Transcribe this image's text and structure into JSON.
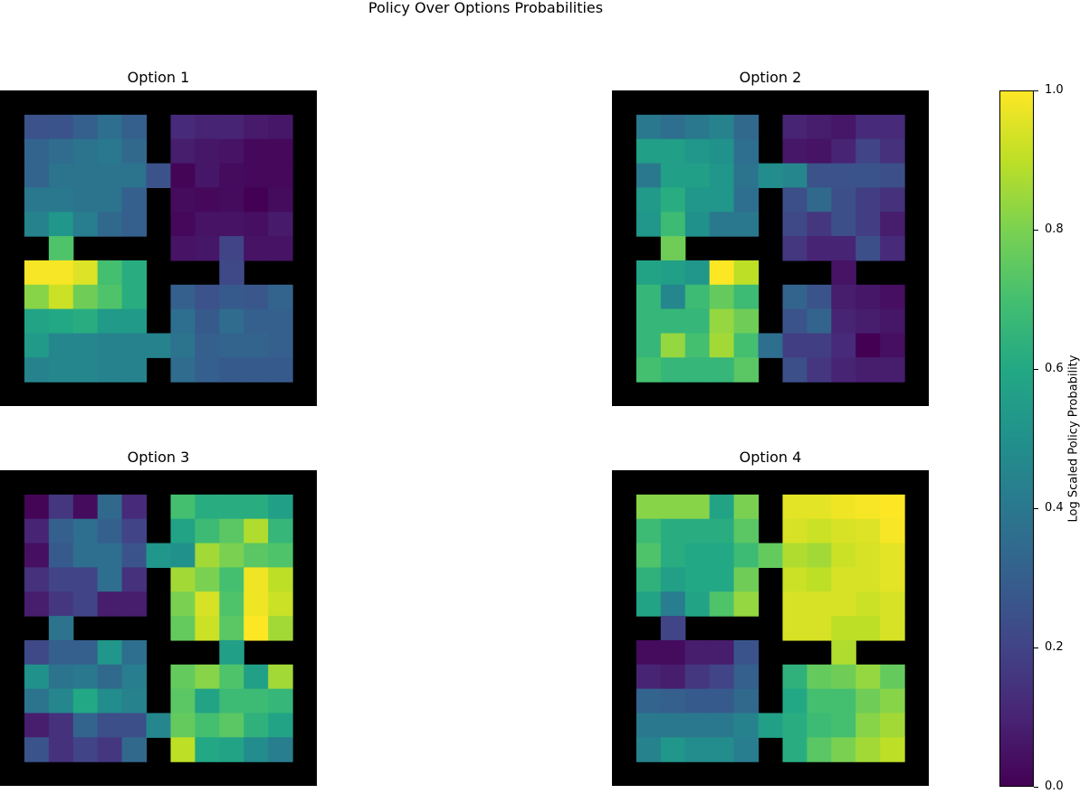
{
  "title": "Policy Over Options Probabilities",
  "colorbar": {
    "label": "Log Scaled Policy Probability",
    "ticks": [
      "0.0",
      "0.2",
      "0.4",
      "0.6",
      "0.8",
      "1.0"
    ],
    "tick_values": [
      0.0,
      0.2,
      0.4,
      0.6,
      0.8,
      1.0
    ],
    "colormap": "viridis"
  },
  "chart_data": [
    {
      "type": "heatmap",
      "title": "Option 1",
      "grid_size": 13,
      "wall_value": null,
      "values": [
        [
          null,
          null,
          null,
          null,
          null,
          null,
          null,
          null,
          null,
          null,
          null,
          null,
          null
        ],
        [
          null,
          0.25,
          0.26,
          0.3,
          0.36,
          0.3,
          null,
          0.12,
          0.1,
          0.1,
          0.07,
          0.06,
          null
        ],
        [
          null,
          0.32,
          0.35,
          0.38,
          0.4,
          0.34,
          null,
          0.08,
          0.06,
          0.05,
          0.02,
          0.02,
          null
        ],
        [
          null,
          0.32,
          0.38,
          0.38,
          0.38,
          0.38,
          0.25,
          0.01,
          0.06,
          0.03,
          0.02,
          0.02,
          null
        ],
        [
          null,
          0.4,
          0.4,
          0.38,
          0.38,
          0.3,
          null,
          0.03,
          0.02,
          0.03,
          0.0,
          0.03,
          null
        ],
        [
          null,
          0.44,
          0.52,
          0.42,
          0.34,
          0.3,
          null,
          0.02,
          0.05,
          0.05,
          0.04,
          0.07,
          null
        ],
        [
          null,
          null,
          0.72,
          null,
          null,
          null,
          null,
          0.05,
          0.06,
          0.2,
          0.05,
          0.05,
          null
        ],
        [
          null,
          0.99,
          0.99,
          0.95,
          0.7,
          0.62,
          null,
          null,
          null,
          0.22,
          null,
          null,
          null
        ],
        [
          null,
          0.82,
          0.92,
          0.78,
          0.72,
          0.62,
          null,
          0.3,
          0.25,
          0.28,
          0.27,
          0.32,
          null
        ],
        [
          null,
          0.58,
          0.6,
          0.62,
          0.54,
          0.54,
          null,
          0.36,
          0.28,
          0.35,
          0.3,
          0.3,
          null
        ],
        [
          null,
          0.54,
          0.46,
          0.46,
          0.44,
          0.44,
          0.44,
          0.38,
          0.3,
          0.32,
          0.32,
          0.3,
          null
        ],
        [
          null,
          0.44,
          0.46,
          0.46,
          0.44,
          0.44,
          null,
          0.35,
          0.3,
          0.28,
          0.28,
          0.28,
          null
        ],
        [
          null,
          null,
          null,
          null,
          null,
          null,
          null,
          null,
          null,
          null,
          null,
          null,
          null
        ]
      ]
    },
    {
      "type": "heatmap",
      "title": "Option 2",
      "grid_size": 13,
      "wall_value": null,
      "values": [
        [
          null,
          null,
          null,
          null,
          null,
          null,
          null,
          null,
          null,
          null,
          null,
          null,
          null
        ],
        [
          null,
          0.4,
          0.36,
          0.4,
          0.44,
          0.34,
          null,
          0.1,
          0.08,
          0.06,
          0.12,
          0.12,
          null
        ],
        [
          null,
          0.56,
          0.56,
          0.52,
          0.5,
          0.36,
          null,
          0.06,
          0.05,
          0.1,
          0.2,
          0.14,
          null
        ],
        [
          null,
          0.4,
          0.56,
          0.56,
          0.52,
          0.38,
          0.48,
          0.46,
          0.25,
          0.25,
          0.26,
          0.24,
          null
        ],
        [
          null,
          0.54,
          0.62,
          0.52,
          0.52,
          0.36,
          null,
          0.24,
          0.34,
          0.24,
          0.18,
          0.14,
          null
        ],
        [
          null,
          0.52,
          0.68,
          0.5,
          0.4,
          0.4,
          null,
          0.22,
          0.16,
          0.24,
          0.18,
          0.08,
          null
        ],
        [
          null,
          null,
          0.78,
          null,
          null,
          null,
          null,
          0.16,
          0.1,
          0.1,
          0.24,
          0.12,
          null
        ],
        [
          null,
          0.58,
          0.56,
          0.52,
          1.0,
          0.9,
          null,
          null,
          null,
          0.05,
          null,
          null,
          null
        ],
        [
          null,
          0.66,
          0.46,
          0.68,
          0.76,
          0.68,
          null,
          0.32,
          0.26,
          0.08,
          0.06,
          0.04,
          null
        ],
        [
          null,
          0.66,
          0.66,
          0.66,
          0.84,
          0.78,
          null,
          0.26,
          0.32,
          0.1,
          0.08,
          0.06,
          null
        ],
        [
          null,
          0.66,
          0.84,
          0.7,
          0.86,
          0.7,
          0.36,
          0.18,
          0.18,
          0.12,
          0.0,
          0.04,
          null
        ],
        [
          null,
          0.7,
          0.66,
          0.66,
          0.66,
          0.74,
          null,
          0.24,
          0.16,
          0.1,
          0.08,
          0.08,
          null
        ],
        [
          null,
          null,
          null,
          null,
          null,
          null,
          null,
          null,
          null,
          null,
          null,
          null,
          null
        ]
      ]
    },
    {
      "type": "heatmap",
      "title": "Option 3",
      "grid_size": 13,
      "wall_value": null,
      "values": [
        [
          null,
          null,
          null,
          null,
          null,
          null,
          null,
          null,
          null,
          null,
          null,
          null,
          null
        ],
        [
          null,
          0.01,
          0.16,
          0.03,
          0.34,
          0.12,
          null,
          0.7,
          0.62,
          0.62,
          0.62,
          0.56,
          null
        ],
        [
          null,
          0.1,
          0.3,
          0.36,
          0.3,
          0.2,
          null,
          0.58,
          0.68,
          0.74,
          0.88,
          0.66,
          null
        ],
        [
          null,
          0.04,
          0.28,
          0.36,
          0.36,
          0.26,
          0.52,
          0.5,
          0.86,
          0.8,
          0.74,
          0.72,
          null
        ],
        [
          null,
          0.14,
          0.2,
          0.2,
          0.36,
          0.14,
          null,
          0.86,
          0.8,
          0.7,
          0.98,
          0.9,
          null
        ],
        [
          null,
          0.08,
          0.16,
          0.2,
          0.08,
          0.08,
          null,
          0.8,
          0.94,
          0.72,
          0.98,
          0.92,
          null
        ],
        [
          null,
          null,
          0.38,
          null,
          null,
          null,
          null,
          0.76,
          0.92,
          0.74,
          1.0,
          0.86,
          null
        ],
        [
          null,
          0.22,
          0.3,
          0.3,
          0.52,
          0.36,
          null,
          null,
          null,
          0.56,
          null,
          null,
          null
        ],
        [
          null,
          0.5,
          0.38,
          0.4,
          0.34,
          0.42,
          null,
          0.76,
          0.82,
          0.72,
          0.56,
          0.86,
          null
        ],
        [
          null,
          0.38,
          0.46,
          0.6,
          0.48,
          0.44,
          null,
          0.74,
          0.58,
          0.68,
          0.68,
          0.66,
          null
        ],
        [
          null,
          0.08,
          0.14,
          0.32,
          0.24,
          0.24,
          0.46,
          0.76,
          0.7,
          0.74,
          0.64,
          0.58,
          null
        ],
        [
          null,
          0.26,
          0.14,
          0.2,
          0.16,
          0.34,
          null,
          0.9,
          0.6,
          0.58,
          0.48,
          0.42,
          null
        ],
        [
          null,
          null,
          null,
          null,
          null,
          null,
          null,
          null,
          null,
          null,
          null,
          null,
          null
        ]
      ]
    },
    {
      "type": "heatmap",
      "title": "Option 4",
      "grid_size": 13,
      "wall_value": null,
      "values": [
        [
          null,
          null,
          null,
          null,
          null,
          null,
          null,
          null,
          null,
          null,
          null,
          null,
          null
        ],
        [
          null,
          0.82,
          0.82,
          0.82,
          0.58,
          0.8,
          null,
          0.96,
          0.96,
          0.98,
          0.99,
          1.0,
          null
        ],
        [
          null,
          0.68,
          0.62,
          0.62,
          0.62,
          0.74,
          null,
          0.94,
          0.92,
          0.94,
          0.95,
          0.99,
          null
        ],
        [
          null,
          0.72,
          0.62,
          0.6,
          0.6,
          0.68,
          0.76,
          0.88,
          0.86,
          0.92,
          0.94,
          0.96,
          null
        ],
        [
          null,
          0.64,
          0.56,
          0.6,
          0.6,
          0.78,
          null,
          0.92,
          0.9,
          0.94,
          0.94,
          0.96,
          null
        ],
        [
          null,
          0.58,
          0.42,
          0.58,
          0.72,
          0.84,
          null,
          0.94,
          0.94,
          0.94,
          0.92,
          0.94,
          null
        ],
        [
          null,
          null,
          0.2,
          null,
          null,
          null,
          null,
          0.94,
          0.94,
          0.9,
          0.9,
          0.94,
          null
        ],
        [
          null,
          0.03,
          0.03,
          0.08,
          0.08,
          0.26,
          null,
          null,
          null,
          0.88,
          null,
          null,
          null
        ],
        [
          null,
          0.1,
          0.08,
          0.16,
          0.2,
          0.3,
          null,
          0.64,
          0.76,
          0.78,
          0.84,
          0.76,
          null
        ],
        [
          null,
          0.32,
          0.3,
          0.28,
          0.28,
          0.34,
          null,
          0.6,
          0.7,
          0.7,
          0.78,
          0.82,
          null
        ],
        [
          null,
          0.4,
          0.4,
          0.4,
          0.4,
          0.44,
          0.56,
          0.62,
          0.68,
          0.7,
          0.82,
          0.86,
          null
        ],
        [
          null,
          0.44,
          0.52,
          0.48,
          0.48,
          0.42,
          null,
          0.62,
          0.74,
          0.8,
          0.86,
          0.9,
          null
        ],
        [
          null,
          null,
          null,
          null,
          null,
          null,
          null,
          null,
          null,
          null,
          null,
          null,
          null
        ]
      ]
    }
  ]
}
